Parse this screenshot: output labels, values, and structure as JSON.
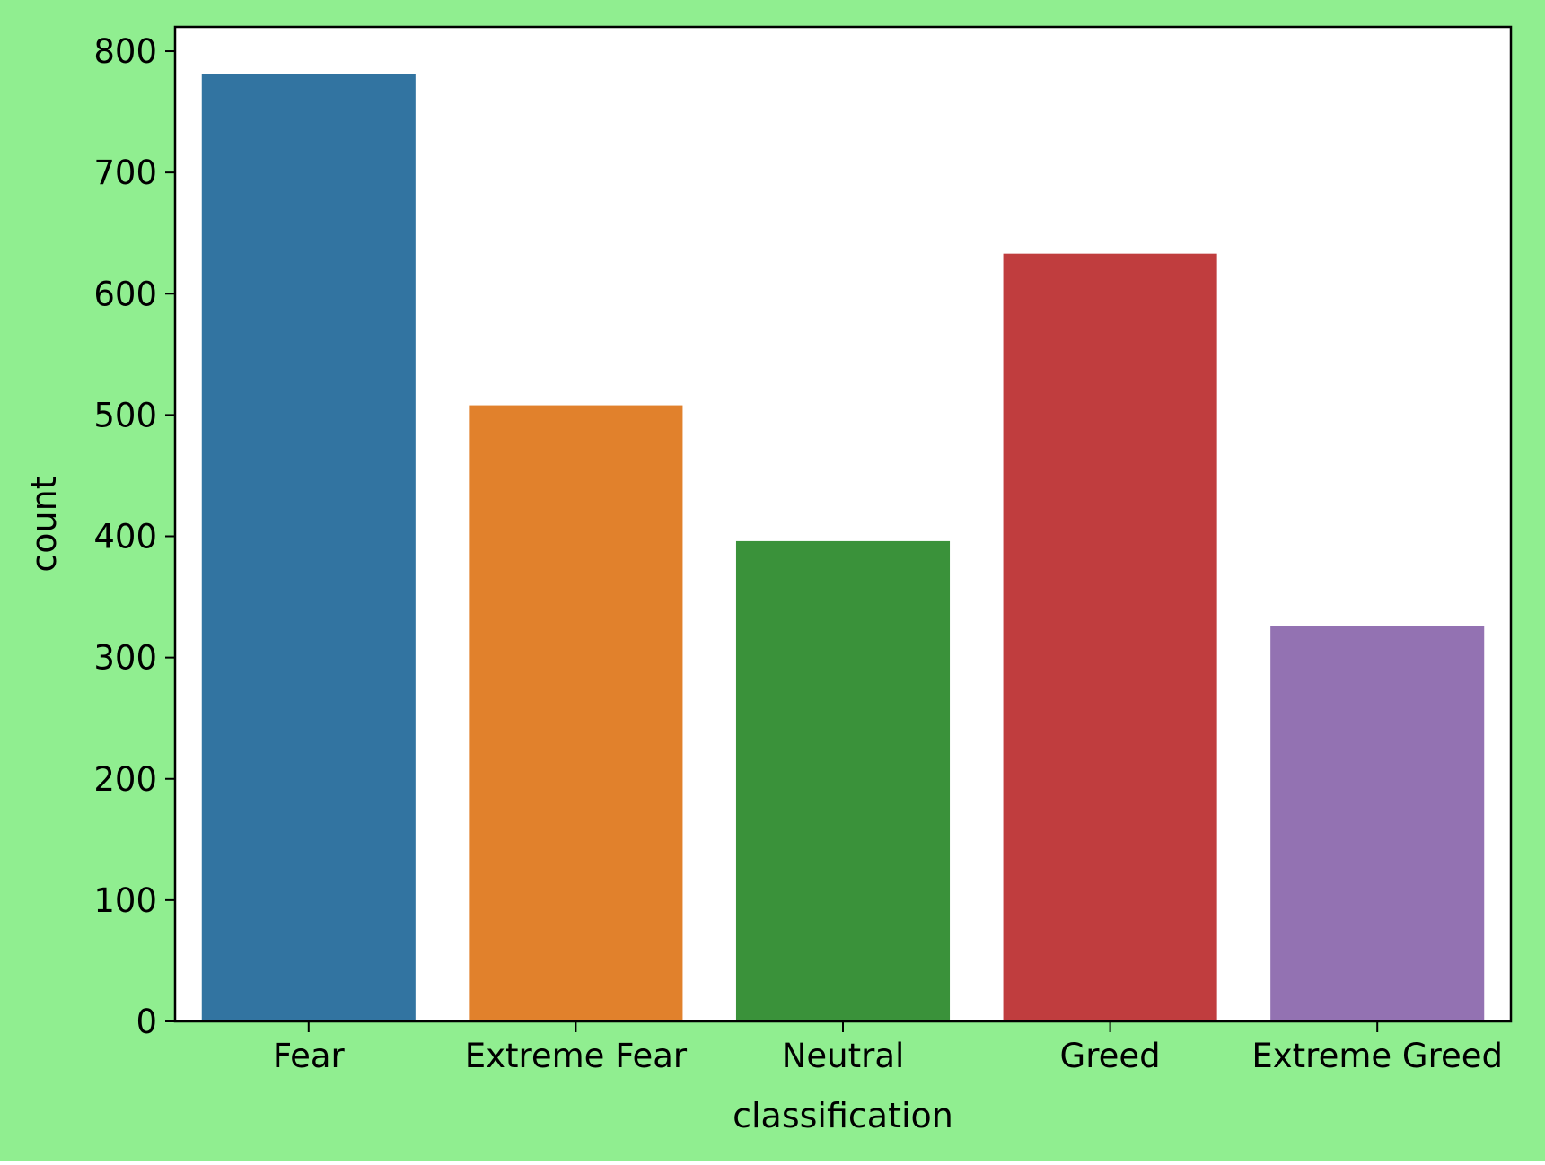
{
  "colors": {
    "figure_background": "#90ee90",
    "plot_background": "#ffffff",
    "axis": "#000000"
  },
  "chart_data": {
    "type": "bar",
    "categories": [
      "Fear",
      "Extreme Fear",
      "Neutral",
      "Greed",
      "Extreme Greed"
    ],
    "values": [
      781,
      508,
      396,
      633,
      326
    ],
    "bar_colors": [
      "#3274a1",
      "#e1812c",
      "#3a923a",
      "#c03d3e",
      "#9372b2"
    ],
    "xlabel": "classification",
    "ylabel": "count",
    "ylim": [
      0,
      820
    ],
    "yticks": [
      0,
      100,
      200,
      300,
      400,
      500,
      600,
      700,
      800
    ],
    "grid": false,
    "legend": "none"
  }
}
